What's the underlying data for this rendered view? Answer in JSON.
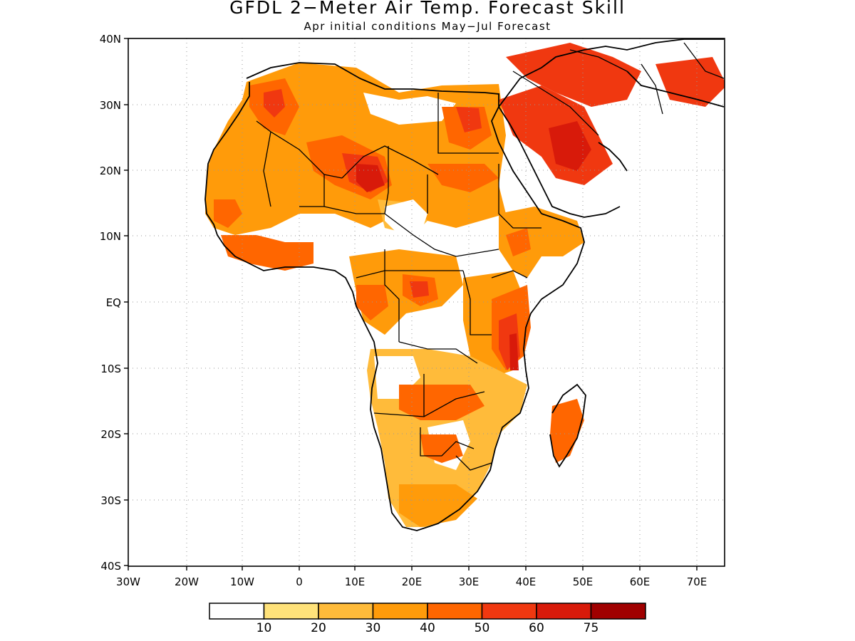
{
  "title": "GFDL 2−Meter Air Temp. Forecast Skill",
  "subtitle": "Apr initial conditions  May−Jul Forecast",
  "lat_labels": [
    "40N",
    "30N",
    "20N",
    "10N",
    "EQ",
    "10S",
    "20S",
    "30S",
    "40S"
  ],
  "lon_labels": [
    "30W",
    "20W",
    "10W",
    "0",
    "10E",
    "20E",
    "30E",
    "40E",
    "50E",
    "60E",
    "70E"
  ],
  "legend": {
    "colors": [
      "#ffffff",
      "#ffe27a",
      "#ffbb3a",
      "#ff9b0a",
      "#ff6600",
      "#f03810",
      "#d81a0a",
      "#a00000"
    ],
    "labels": [
      "10",
      "20",
      "30",
      "40",
      "50",
      "60",
      "75"
    ]
  },
  "regions": [
    {
      "level": 3,
      "polys": [
        "346,115 420,88 500,95 560,130 620,120 700,118 710,190 700,260 710,300 640,320 560,300 520,320 470,300 420,300 380,320 330,330 300,320 288,300 290,240 300,210 320,170 340,140"
      ]
    },
    {
      "level": 2,
      "polys": [
        "530,280 580,285 600,310 580,330 540,320"
      ]
    },
    {
      "level": 0,
      "polys": [
        "510,130 560,140 600,135 640,145 620,170 560,175 520,160",
        "540,290 580,280 600,300 590,330 560,330 540,310",
        "590,380 640,370 650,420 640,480 600,480 580,440",
        "745,340 790,340 800,380 770,400 740,380"
      ]
    },
    {
      "level": 4,
      "polys": [
        "350,120 400,110 420,150 400,190 370,180 350,150",
        "430,200 480,190 540,220 550,260 520,280 470,260 440,240",
        "300,280 330,280 340,300 320,320 300,310",
        "310,330 360,330 400,340 440,340 440,370 400,380 350,370 320,360",
        "620,150 680,150 690,190 660,210 630,200",
        "600,230 680,230 700,250 660,270 620,260"
      ]
    },
    {
      "level": 5,
      "polys": [
        "370,130 395,125 400,150 385,165 370,150",
        "480,215 530,220 545,255 520,270 490,255",
        "640,150 672,152 676,180 652,186",
        "700,140 760,120 820,150 840,190 860,230 820,260 780,250 760,220 720,190",
        "710,80 800,60 860,80 900,100 880,140 830,150 780,130 740,110",
        "920,90 1000,80 1020,120 990,150 940,140"
      ]
    },
    {
      "level": 6,
      "polys": [
        "500,230 530,232 540,260 515,270 500,255",
        "770,180 810,170 830,210 810,240 780,230"
      ]
    },
    {
      "level": 3,
      "polys": [
        "490,360 560,350 640,360 650,400 620,430 570,440 540,470 510,450 500,410",
        "650,390 720,380 740,430 730,480 720,520 690,530 660,500 650,450",
        "700,300 750,290 810,310 820,340 790,360 760,360 740,390 720,380 700,350"
      ]
    },
    {
      "level": 4,
      "polys": [
        "565,385 610,390 615,420 590,430 565,415",
        "500,400 540,400 545,430 520,450 500,430",
        "690,420 740,400 745,460 735,500 710,520 690,490",
        "710,330 740,320 745,350 720,360"
      ]
    },
    {
      "level": 5,
      "polys": [
        "575,395 600,395 602,415 580,418",
        "700,450 725,440 730,500 712,520 700,490"
      ]
    },
    {
      "level": 6,
      "polys": [
        "715,470 725,468 728,520 716,520"
      ]
    },
    {
      "level": 2,
      "polys": [
        "520,490 600,490 660,500 700,520 740,540 730,580 700,610 690,650 670,690 640,720 600,740 570,740 545,700 540,650 530,600 520,560 515,520"
      ]
    },
    {
      "level": 0,
      "polys": [
        "525,500 580,500 590,530 560,560 530,560",
        "600,600 650,590 660,620 640,660 610,650"
      ]
    },
    {
      "level": 4,
      "polys": [
        "560,540 660,540 680,570 640,590 590,590 560,575",
        "590,610 640,610 650,640 620,650 595,640",
        "775,570 810,560 820,590 800,640 780,650 772,610"
      ]
    },
    {
      "level": 3,
      "polys": [
        "560,680 640,680 670,700 640,730 590,740 560,720"
      ]
    }
  ],
  "coastlines": [
    "346,110 380,95 420,88 470,90 505,110 540,125 580,125 620,128 680,130 700,132 700,150 730,110 760,95 780,80 820,70 850,65 880,70 920,60 960,55 1016,55",
    "700,150 716,175 730,200 745,230 760,260 775,290 800,300 820,305 850,300 870,290",
    "760,300 790,310 815,320 820,340 810,370 790,400 760,420 745,440 738,460 735,490 738,520 742,545 730,580 705,600 695,630 688,660 670,690 645,715 615,735 585,745 565,740 550,720 545,690 540,660 535,630 525,600 520,575 522,545 530,510 525,480 515,460 500,430 495,410 485,390 470,380 440,375 400,375 370,380 350,370 330,360 315,345 305,330 300,315 290,300 288,280 290,255 292,230 300,210 318,185 335,160 350,135 350,115",
    "775,580 790,555 810,540 822,555 818,585 810,615 795,640 785,655 777,640 772,610",
    "700,150 690,170 700,200 720,240 740,270 760,300",
    "840,200 855,210 870,225 880,240",
    "880,100 900,120 940,130 980,140 1016,150"
  ],
  "borders": [
    "360,170 380,185 420,210 455,245 480,250",
    "455,245 455,290",
    "480,250 510,220 540,205 580,225 615,245",
    "545,205 545,270 540,300",
    "615,130 615,215 700,215",
    "380,185 370,240 380,290",
    "420,290 455,290 500,300 540,300",
    "540,300 580,330 610,350 640,360 700,350",
    "600,245 600,300",
    "700,230 700,300 720,320 760,320",
    "500,390 540,380 580,380 620,380 650,380",
    "540,350 540,400 560,420 560,480",
    "650,380 660,420 660,470 690,470",
    "690,390 720,380 740,390",
    "560,480 600,490 640,490 670,510",
    "525,580 595,585 640,560 680,550",
    "595,525 595,585",
    "590,600 590,640 620,640 640,620 665,630",
    "640,640 660,660 690,650",
    "720,100 760,125 800,150 840,190",
    "800,70 840,80 880,100",
    "900,90 920,120 930,160",
    "960,60 990,100 1016,110"
  ],
  "grid": {
    "ticks_x": [
      180,
      262,
      340,
      420,
      498,
      578,
      658,
      738,
      818,
      898,
      978
    ],
    "ticks_y": [
      54,
      147,
      239,
      331,
      424,
      517,
      609,
      702,
      794
    ]
  }
}
